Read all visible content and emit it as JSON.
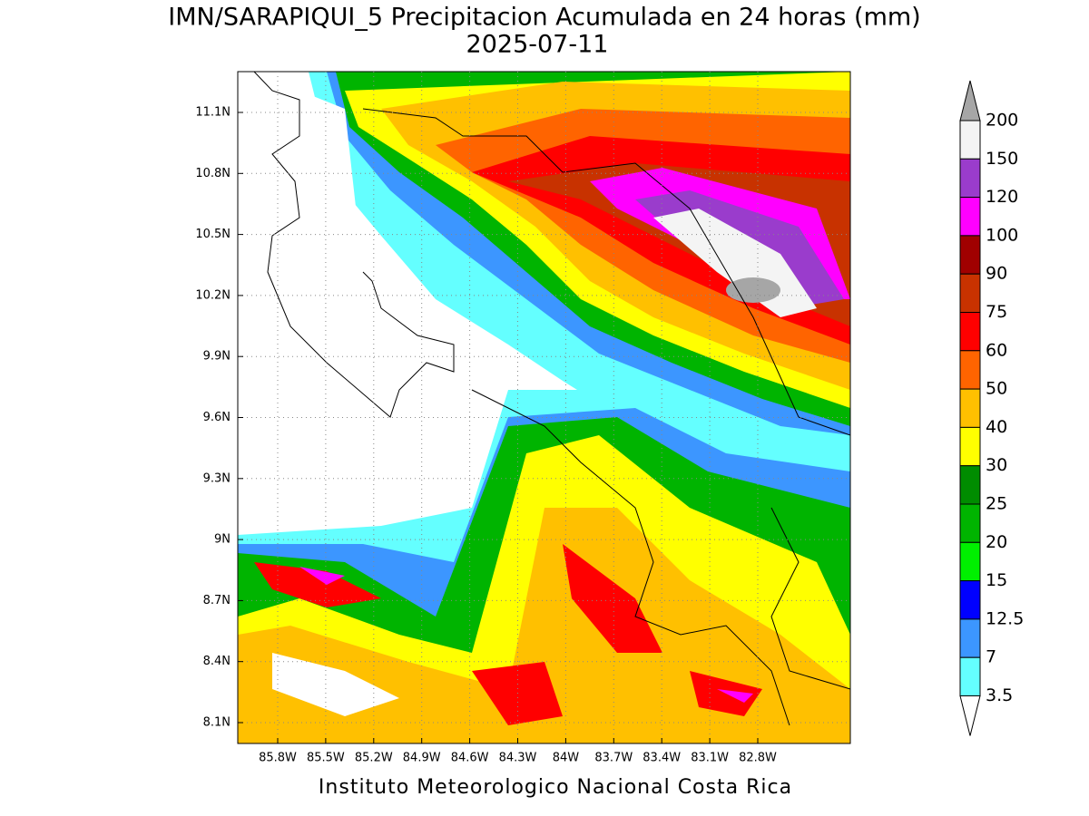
{
  "title": "IMN/SARAPIQUI_5 Precipitacion Acumulada en 24 horas (mm)",
  "date": "2025-07-11",
  "lat_ticks": [
    {
      "value": 11.1,
      "label": "11.1N"
    },
    {
      "value": 10.8,
      "label": "10.8N"
    },
    {
      "value": 10.5,
      "label": "10.5N"
    },
    {
      "value": 10.2,
      "label": "10.2N"
    },
    {
      "value": 9.9,
      "label": "9.9N"
    },
    {
      "value": 9.6,
      "label": "9.6N"
    },
    {
      "value": 9.3,
      "label": "9.3N"
    },
    {
      "value": 9,
      "label": "9N"
    },
    {
      "value": 8.7,
      "label": "8.7N"
    },
    {
      "value": 8.4,
      "label": "8.4N"
    },
    {
      "value": 8.1,
      "label": "8.1N"
    }
  ],
  "lon_ticks": [
    {
      "value": -85.8,
      "label": "85.8W"
    },
    {
      "value": -85.5,
      "label": "85.5W"
    },
    {
      "value": -85.2,
      "label": "85.2W"
    },
    {
      "value": -84.9,
      "label": "84.9W"
    },
    {
      "value": -84.6,
      "label": "84.6W"
    },
    {
      "value": -84.3,
      "label": "84.3W"
    },
    {
      "value": -84,
      "label": "84W"
    },
    {
      "value": -83.7,
      "label": "83.7W"
    },
    {
      "value": -83.4,
      "label": "83.4W"
    },
    {
      "value": -83.1,
      "label": "83.1W"
    },
    {
      "value": -82.8,
      "label": "82.8W"
    }
  ],
  "colorbar": {
    "levels": [
      200,
      150,
      120,
      100,
      90,
      75,
      60,
      50,
      40,
      30,
      25,
      20,
      15,
      12.5,
      7,
      3.5
    ],
    "colors": [
      "#f4f4f4",
      "#9a3ccc",
      "#ff00ff",
      "#a00000",
      "#c83200",
      "#ff0000",
      "#ff6400",
      "#ffc000",
      "#ffff00",
      "#008c00",
      "#00b400",
      "#00f000",
      "#0000ff",
      "#3c96ff",
      "#64ffff"
    ],
    "over_color": "#a6a6a6",
    "under_color": "#ffffff"
  },
  "footer": "Instituto Meteorologico Nacional Costa Rica"
}
